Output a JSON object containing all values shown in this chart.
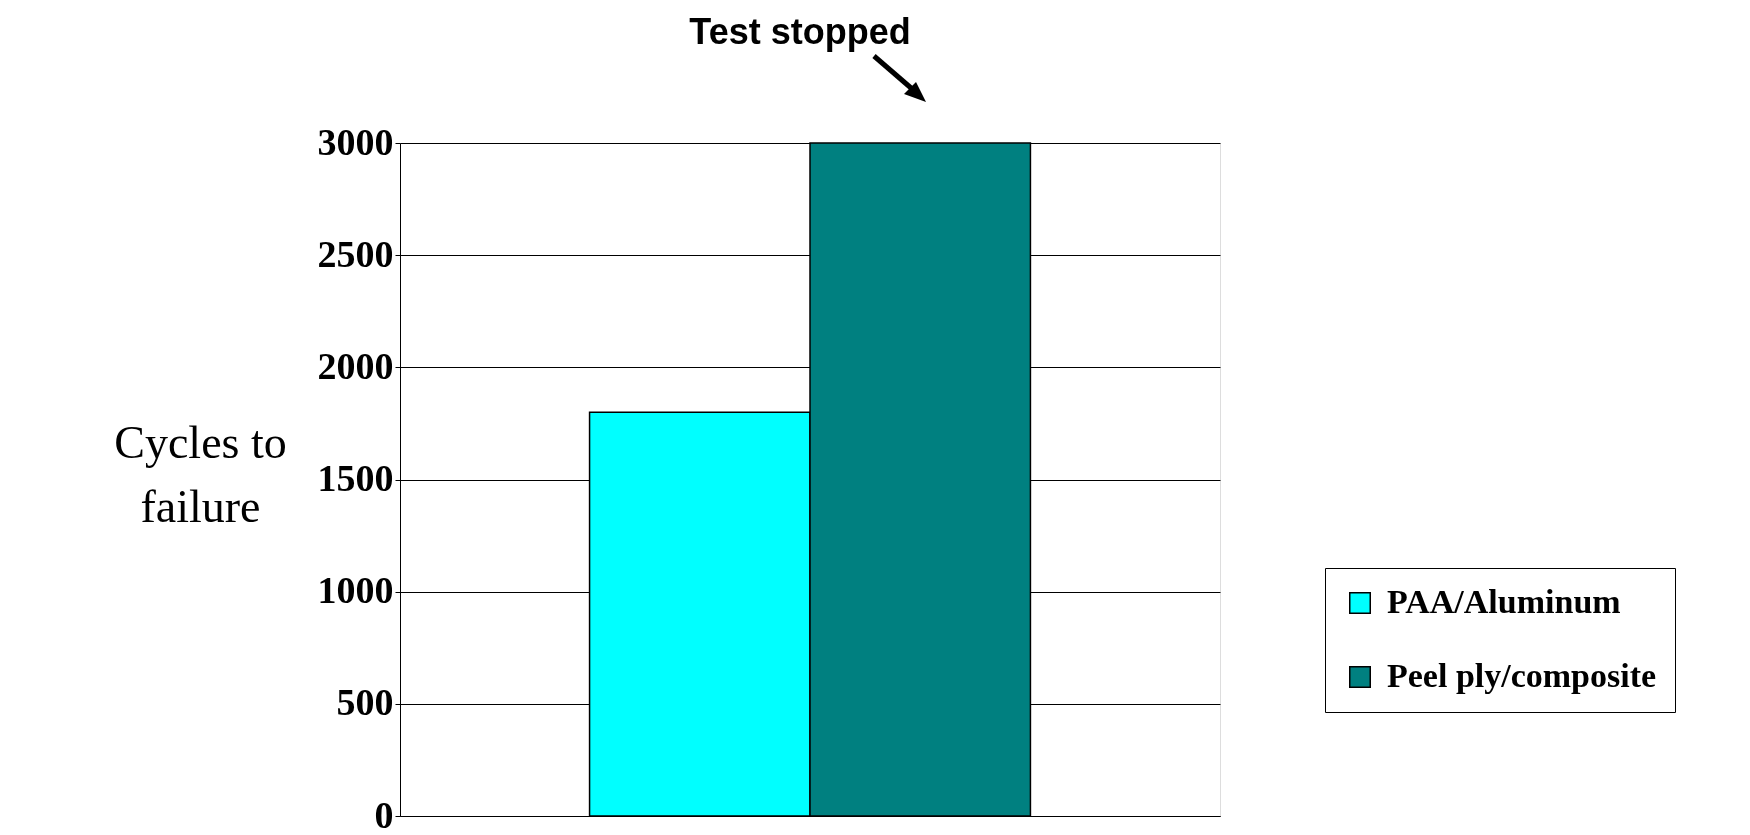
{
  "chart_data": {
    "type": "bar",
    "categories": [
      null
    ],
    "ylabel": "Cycles to failure",
    "ylim": [
      0,
      3000
    ],
    "yticks": [
      0,
      500,
      1000,
      1500,
      2000,
      2500,
      3000
    ],
    "grid": "y",
    "legend": "right",
    "annotations": [
      "Test stopped"
    ],
    "series": [
      {
        "name": "PAA/Aluminum",
        "color": "#00ffff",
        "values": [
          1800
        ]
      },
      {
        "name": "Peel ply/composite",
        "color": "#008080",
        "values": [
          3000
        ]
      }
    ]
  }
}
